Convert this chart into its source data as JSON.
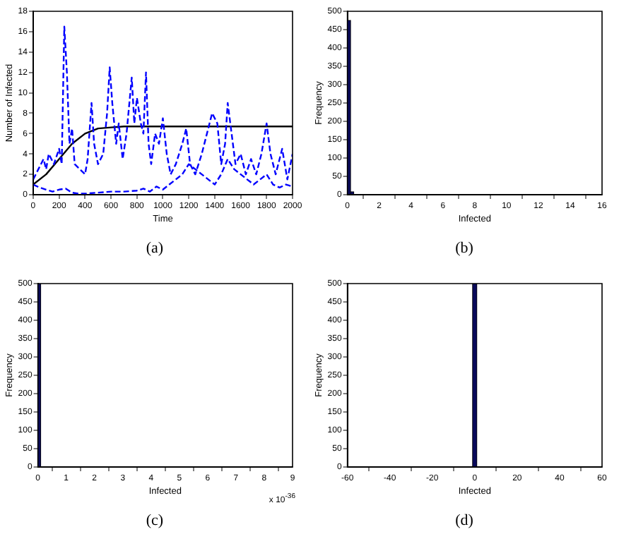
{
  "chart_data": [
    {
      "type": "line",
      "title": "(a)",
      "xlabel": "Time",
      "ylabel": "Number of Infected",
      "xlim": [
        0,
        2000
      ],
      "xticks": [
        0,
        200,
        400,
        600,
        800,
        1000,
        1200,
        1400,
        1600,
        1800,
        2000
      ],
      "ylim": [
        0,
        18
      ],
      "yticks": [
        0,
        2,
        4,
        6,
        8,
        10,
        12,
        14,
        16,
        18
      ],
      "grid": false,
      "marker": "none",
      "series": [
        {
          "color": "#0000ff",
          "line_style": "dashed",
          "x": [
            0,
            40,
            80,
            100,
            120,
            160,
            200,
            220,
            240,
            260,
            280,
            300,
            320,
            360,
            400,
            420,
            450,
            470,
            500,
            540,
            570,
            590,
            610,
            640,
            660,
            690,
            720,
            760,
            780,
            800,
            830,
            850,
            870,
            890,
            910,
            940,
            970,
            1000,
            1030,
            1060,
            1100,
            1150,
            1180,
            1210,
            1250,
            1300,
            1340,
            1380,
            1420,
            1450,
            1480,
            1500,
            1530,
            1560,
            1600,
            1640,
            1680,
            1720,
            1760,
            1800,
            1830,
            1870,
            1920,
            1960,
            2000
          ],
          "values": [
            1.5,
            2.5,
            3.5,
            2.5,
            4,
            3,
            4.5,
            3,
            16.5,
            12,
            5,
            6.5,
            3,
            2.5,
            2,
            3.5,
            9,
            5,
            3,
            4,
            8,
            12.5,
            9,
            5,
            7,
            3.5,
            6,
            11.5,
            7,
            9.5,
            7,
            6,
            12,
            5,
            3,
            6,
            5,
            7.5,
            4,
            2,
            3,
            5,
            6.5,
            3,
            2,
            4,
            6,
            8,
            7,
            3,
            5,
            9,
            6,
            3,
            4,
            2,
            3.5,
            2,
            4,
            7,
            4,
            2,
            4.5,
            1.5,
            4
          ]
        },
        {
          "color": "#0000ff",
          "line_style": "dashed",
          "x": [
            0,
            50,
            100,
            150,
            200,
            250,
            300,
            350,
            400,
            500,
            600,
            700,
            800,
            850,
            900,
            950,
            1000,
            1050,
            1100,
            1150,
            1200,
            1250,
            1300,
            1350,
            1400,
            1450,
            1500,
            1550,
            1600,
            1650,
            1700,
            1750,
            1800,
            1850,
            1900,
            1950,
            2000
          ],
          "values": [
            1,
            0.7,
            0.5,
            0.3,
            0.5,
            0.6,
            0.2,
            0.1,
            0.1,
            0.2,
            0.3,
            0.3,
            0.4,
            0.6,
            0.3,
            0.8,
            0.5,
            1,
            1.5,
            2,
            3,
            2.5,
            2,
            1.5,
            1,
            2,
            3.5,
            2.5,
            2,
            1.5,
            1,
            1.5,
            2,
            1,
            0.7,
            1,
            0.8
          ]
        },
        {
          "color": "#000000",
          "line_style": "solid",
          "x": [
            0,
            100,
            200,
            300,
            400,
            500,
            600,
            700,
            2000
          ],
          "values": [
            1,
            2,
            3.5,
            5,
            6,
            6.5,
            6.6,
            6.7,
            6.7
          ]
        }
      ]
    },
    {
      "type": "histogram",
      "title": "(b)",
      "xlabel": "Infected",
      "ylabel": "Frequency",
      "xlim": [
        0,
        16
      ],
      "xticks": [
        0,
        2,
        4,
        6,
        8,
        10,
        12,
        14,
        16
      ],
      "ylim": [
        0,
        500
      ],
      "yticks": [
        0,
        50,
        100,
        150,
        200,
        250,
        300,
        350,
        400,
        450,
        500
      ],
      "grid": false,
      "color": "#0a0a5a",
      "bins": [
        0,
        0.2,
        0.4,
        0.6,
        0.8
      ],
      "values": [
        475,
        8,
        null,
        null
      ]
    },
    {
      "type": "histogram",
      "title": "(c)",
      "xlabel": "Infected",
      "ylabel": "Frequency",
      "xlim": [
        0,
        9
      ],
      "xticks": [
        0,
        1,
        2,
        3,
        4,
        5,
        6,
        7,
        8,
        9
      ],
      "ylim": [
        0,
        500
      ],
      "yticks": [
        0,
        50,
        100,
        150,
        200,
        250,
        300,
        350,
        400,
        450,
        500
      ],
      "grid": false,
      "color": "#0a0a5a",
      "annotations": [
        "x 10$^{-36}$"
      ],
      "bins": [
        0,
        0.1
      ],
      "values": [
        500
      ]
    },
    {
      "type": "histogram",
      "title": "(d)",
      "xlabel": "Infected",
      "ylabel": "Frequency",
      "xlim": [
        -60,
        60
      ],
      "xticks": [
        -60,
        -40,
        -20,
        0,
        20,
        40,
        60
      ],
      "ylim": [
        0,
        500
      ],
      "yticks": [
        0,
        50,
        100,
        150,
        200,
        250,
        300,
        350,
        400,
        450,
        500
      ],
      "grid": false,
      "color": "#0a0a5a",
      "bins": [
        -1,
        1
      ],
      "values": [
        500
      ]
    }
  ]
}
